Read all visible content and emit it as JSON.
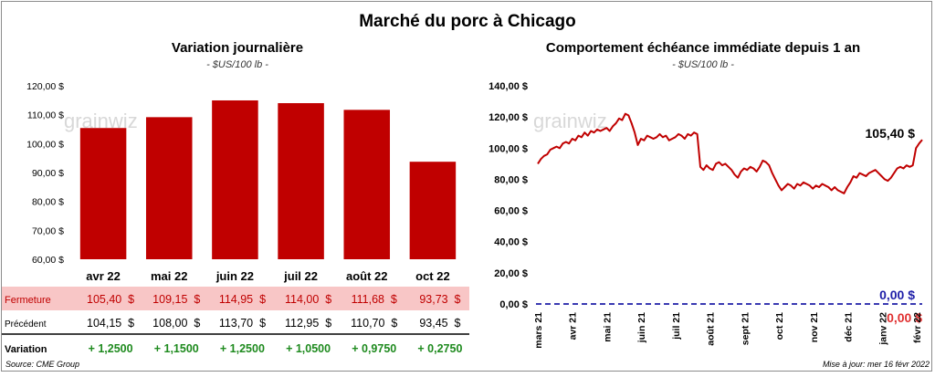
{
  "title": "Marché du porc à Chicago",
  "source": "Source: CME Group",
  "updated": "Mise à jour: mer 16 févr 2022",
  "watermark": "grainwiz",
  "colors": {
    "bar": "#c00000",
    "line": "#c00000",
    "zero_line": "#1f1fa8",
    "highlight_row": "#f8c6c6",
    "positive": "#1e8a1e"
  },
  "chart_data": [
    {
      "type": "bar",
      "title": "Variation journalière",
      "subtitle": "- $US/100 lb -",
      "categories": [
        "avr 22",
        "mai 22",
        "juin 22",
        "juil 22",
        "août 22",
        "oct 22"
      ],
      "series": [
        {
          "name": "Fermeture",
          "values": [
            105.4,
            109.15,
            114.95,
            114.0,
            111.68,
            93.73
          ]
        }
      ],
      "ylim": [
        60,
        120
      ],
      "yticks": [
        "60,00 $",
        "70,00 $",
        "80,00 $",
        "90,00 $",
        "100,00 $",
        "110,00 $",
        "120,00 $"
      ],
      "ytick_values": [
        60,
        70,
        80,
        90,
        100,
        110,
        120
      ],
      "grid": false
    },
    {
      "type": "line",
      "title": "Comportement  échéance immédiate depuis 1 an",
      "subtitle": "- $US/100 lb -",
      "x_labels": [
        "mars 21",
        "avr 21",
        "mai 21",
        "juin 21",
        "juil 21",
        "août 21",
        "sept 21",
        "oct 21",
        "nov 21",
        "déc 21",
        "janv 22",
        "févr 22"
      ],
      "series": [
        {
          "name": "Échéance immédiate",
          "values": [
            90,
            93,
            95,
            96,
            99,
            100,
            101,
            100,
            103,
            104,
            103,
            106,
            105,
            108,
            107,
            110,
            108,
            111,
            110,
            112,
            111,
            112,
            113,
            111,
            114,
            116,
            119,
            118,
            122,
            121,
            116,
            110,
            102,
            106,
            105,
            108,
            107,
            106,
            107,
            109,
            107,
            108,
            105,
            106,
            107,
            109,
            108,
            106,
            109,
            108,
            110,
            109,
            88,
            86,
            89,
            87,
            86,
            90,
            91,
            89,
            90,
            88,
            86,
            83,
            81,
            85,
            87,
            86,
            88,
            87,
            85,
            88,
            92,
            91,
            89,
            84,
            80,
            76,
            73,
            75,
            77,
            76,
            74,
            77,
            76,
            78,
            77,
            76,
            74,
            76,
            75,
            77,
            76,
            75,
            73,
            75,
            73,
            72,
            71,
            75,
            78,
            82,
            81,
            84,
            83,
            82,
            84,
            85,
            86,
            84,
            82,
            80,
            79,
            81,
            84,
            87,
            88,
            87,
            89,
            88,
            89,
            100,
            103,
            105.4
          ]
        }
      ],
      "last_value_label": "105,40 $",
      "zero_line_label": "0,00 $",
      "zero_line_label_2": "0,00 $",
      "ylim": [
        0,
        140
      ],
      "yticks": [
        "0,00 $",
        "20,00 $",
        "40,00 $",
        "60,00 $",
        "80,00 $",
        "100,00 $",
        "120,00 $",
        "140,00 $"
      ],
      "ytick_values": [
        0,
        20,
        40,
        60,
        80,
        100,
        120,
        140
      ],
      "grid": false
    }
  ],
  "table": {
    "rows": [
      {
        "label": "Fermeture",
        "cells": [
          "105,40  $",
          "109,15  $",
          "114,95  $",
          "114,00  $",
          "111,68  $",
          "93,73  $"
        ]
      },
      {
        "label": "Précédent",
        "cells": [
          "104,15  $",
          "108,00  $",
          "113,70  $",
          "112,95  $",
          "110,70  $",
          "93,45  $"
        ]
      },
      {
        "label": "Variation",
        "cells": [
          "+ 1,2500",
          "+ 1,1500",
          "+ 1,2500",
          "+ 1,0500",
          "+ 0,9750",
          "+ 0,2750"
        ]
      }
    ]
  }
}
